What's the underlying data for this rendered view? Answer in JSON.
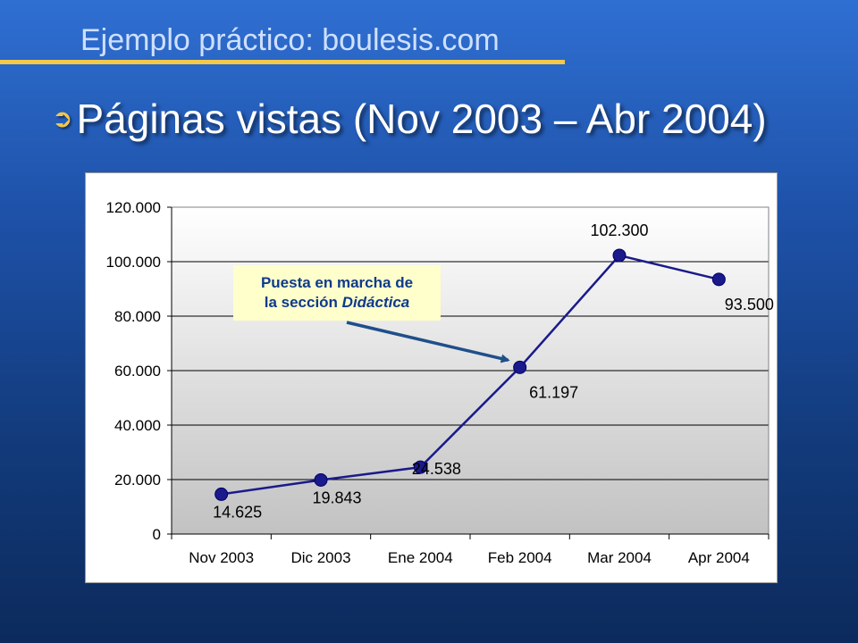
{
  "slide": {
    "title": "Ejemplo práctico: boulesis.com",
    "bullet": "Páginas vistas (Nov 2003 – Abr 2004)",
    "bullet_icon": "curved-arrow-bullet-icon",
    "accent_color": "#f2c94a"
  },
  "callout": {
    "line1": "Puesta en marcha de",
    "line2_prefix": "la sección ",
    "line2_italic": "Didáctica"
  },
  "chart_data": {
    "type": "line",
    "categories": [
      "Nov 2003",
      "Dic 2003",
      "Ene 2004",
      "Feb 2004",
      "Mar 2004",
      "Apr 2004"
    ],
    "series": [
      {
        "values": [
          14625,
          19843,
          24538,
          61197,
          102300,
          93500
        ],
        "data_labels": [
          "14.625",
          "19.843",
          "24.538",
          "61.197",
          "102.300",
          "93.500"
        ],
        "color": "#1a1a8c"
      }
    ],
    "yticks": [
      "0",
      "20.000",
      "40.000",
      "60.000",
      "80.000",
      "100.000",
      "120.000"
    ],
    "ylim": [
      0,
      120000
    ],
    "grid": true,
    "title": "",
    "xlabel": "",
    "ylabel": ""
  }
}
